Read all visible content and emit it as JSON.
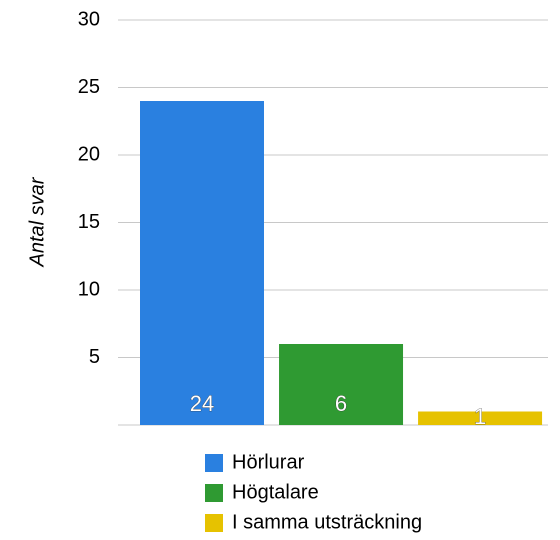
{
  "chart_data": {
    "type": "bar",
    "y_label": "Antal svar",
    "series": [
      {
        "name": "Hörlurar",
        "color": "#2a80e0",
        "values": [
          24
        ]
      },
      {
        "name": "Högtalare",
        "color": "#2f9a32",
        "values": [
          6
        ]
      },
      {
        "name": "I samma utsträckning",
        "color": "#e6c200",
        "values": [
          1
        ]
      }
    ],
    "ylim": [
      0,
      30
    ],
    "yticks": [
      5,
      10,
      15,
      20,
      25,
      30
    ],
    "grid": true,
    "legend": "bottom"
  }
}
